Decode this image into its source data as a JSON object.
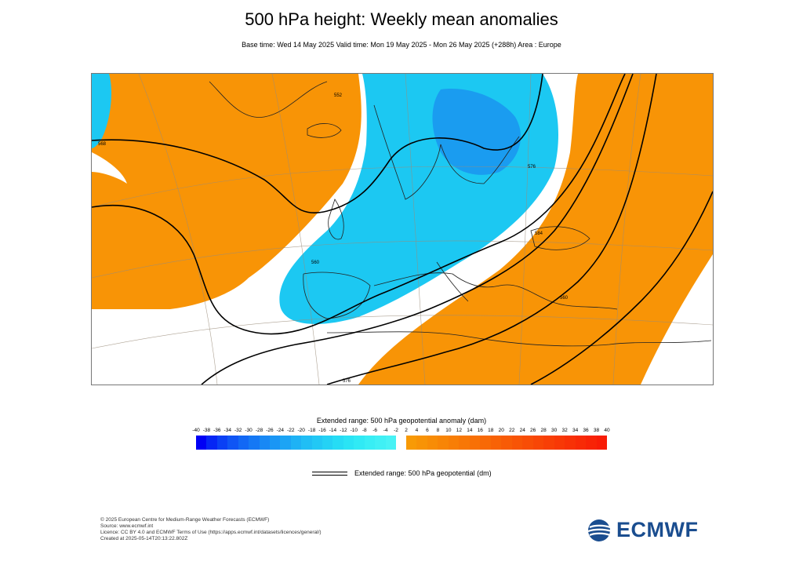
{
  "title": "500 hPa height: Weekly mean anomalies",
  "subtitle": "Base time: Wed 14 May 2025 Valid time: Mon 19 May 2025 - Mon 26 May 2025 (+288h) Area : Europe",
  "colorbar": {
    "title": "Extended range: 500 hPa geopotential anomaly (dam)",
    "negative_ticks": [
      "-40",
      "-38",
      "-36",
      "-34",
      "-32",
      "-30",
      "-28",
      "-26",
      "-24",
      "-22",
      "-20",
      "-18",
      "-16",
      "-14",
      "-12",
      "-10",
      "-8",
      "-6",
      "-4",
      "-2"
    ],
    "positive_ticks": [
      "2",
      "4",
      "6",
      "8",
      "10",
      "12",
      "14",
      "16",
      "18",
      "20",
      "22",
      "24",
      "26",
      "28",
      "30",
      "32",
      "34",
      "36",
      "38",
      "40"
    ],
    "negative_colors": [
      "#0000f5",
      "#0526f5",
      "#0a40f5",
      "#0f55f5",
      "#1268f5",
      "#1578f5",
      "#1888f5",
      "#1a96f5",
      "#1ca4f5",
      "#1eb2f5",
      "#20bef5",
      "#22c8f5",
      "#24d2f5",
      "#26dcf5",
      "#2ae4f5",
      "#30eaf5",
      "#38eef5",
      "#40f0f5",
      "#48f2f5"
    ],
    "positive_colors": [
      "#f89a06",
      "#f89306",
      "#f88c06",
      "#f88506",
      "#f87e06",
      "#f87706",
      "#f87006",
      "#f86906",
      "#f86206",
      "#f85b06",
      "#f85406",
      "#f84d06",
      "#f84606",
      "#f83f06",
      "#f83806",
      "#f83106",
      "#f82a06",
      "#f82306",
      "#f81c06"
    ]
  },
  "contour_legend": "Extended range: 500 hPa geopotential (dm)",
  "map": {
    "anomaly_colors": {
      "positive": "#f89406",
      "negative": "#1cc8f2",
      "strong_negative": "#1a9cf0"
    },
    "contour_labels": [
      "568",
      "552",
      "560",
      "576",
      "584",
      "560",
      "576"
    ]
  },
  "footer": [
    "© 2025 European Centre for Medium-Range Weather Forecasts (ECMWF)",
    "Source: www.ecmwf.int",
    "Licence: CC BY 4.0 and ECMWF Terms of Use (https://apps.ecmwf.int/datasets/licences/general/)",
    "Created at 2025-05-14T20:13:22.802Z"
  ],
  "logo": {
    "text": "ECMWF",
    "color": "#1a4d8f"
  }
}
